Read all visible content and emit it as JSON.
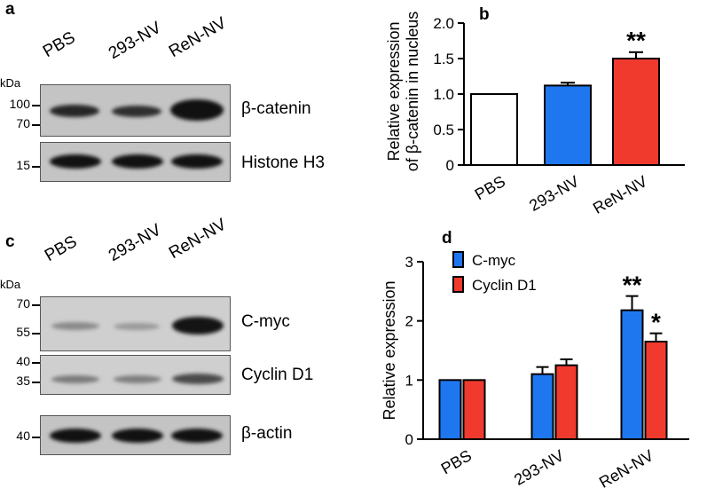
{
  "panels": {
    "a": {
      "letter": "a",
      "kda": "kDa",
      "lanes": [
        "PBS",
        "293-NV",
        "ReN-NV"
      ],
      "markers": [
        "100",
        "70",
        "15"
      ],
      "proteins": [
        "β-catenin",
        "Histone H3"
      ]
    },
    "c": {
      "letter": "c",
      "kda": "kDa",
      "lanes": [
        "PBS",
        "293-NV",
        "ReN-NV"
      ],
      "markers": [
        "70",
        "55",
        "40",
        "35",
        "40"
      ],
      "proteins": [
        "C-myc",
        "Cyclin D1",
        "β-actin"
      ]
    }
  },
  "colors": {
    "blue": "#1f77f0",
    "red": "#f03a2e",
    "white": "#ffffff",
    "blot_bg": "#c4c4c4",
    "band": "#1a1a1a"
  },
  "chart_data": [
    {
      "panel": "b",
      "type": "bar",
      "ylabel": "Relative expression of β-catenin in nucleus",
      "categories": [
        "PBS",
        "293-NV",
        "ReN-NV"
      ],
      "values": [
        1.0,
        1.12,
        1.5
      ],
      "errors": [
        0,
        0.04,
        0.09
      ],
      "bar_colors": [
        "#ffffff",
        "#1f77f0",
        "#f03a2e"
      ],
      "significance": [
        "",
        "",
        "**"
      ],
      "ylim": [
        0,
        2.0
      ],
      "yticks": [
        "0",
        "0.5",
        "1.0",
        "1.5",
        "2.0"
      ]
    },
    {
      "panel": "d",
      "type": "bar",
      "ylabel": "Relative expression",
      "categories": [
        "PBS",
        "293-NV",
        "ReN-NV"
      ],
      "series": [
        {
          "name": "C-myc",
          "color": "#1f77f0",
          "values": [
            1.0,
            1.1,
            2.18
          ],
          "errors": [
            0,
            0.12,
            0.24
          ],
          "significance": [
            "",
            "",
            "**"
          ]
        },
        {
          "name": "Cyclin D1",
          "color": "#f03a2e",
          "values": [
            1.0,
            1.25,
            1.65
          ],
          "errors": [
            0,
            0.1,
            0.14
          ],
          "significance": [
            "",
            "",
            "*"
          ]
        }
      ],
      "ylim": [
        0,
        3
      ],
      "yticks": [
        "0",
        "1",
        "2",
        "3"
      ],
      "legend": "top-left"
    }
  ]
}
